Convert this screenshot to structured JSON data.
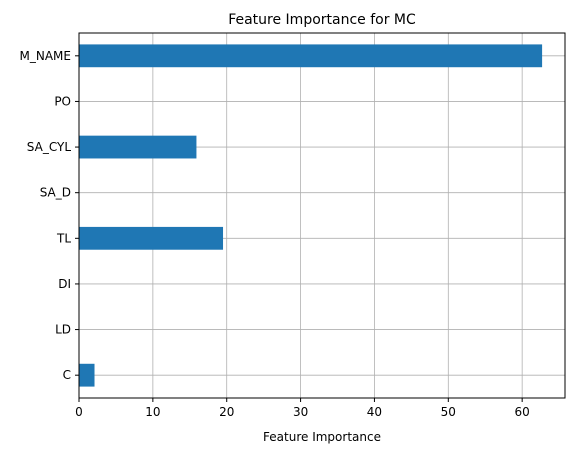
{
  "chart_data": {
    "type": "bar",
    "orientation": "horizontal",
    "title": "Feature Importance for MC",
    "xlabel": "Feature Importance",
    "ylabel": "",
    "categories": [
      "M_NAME",
      "PO",
      "SA_CYL",
      "SA_D",
      "TL",
      "DI",
      "LD",
      "C"
    ],
    "values": [
      62.7,
      0,
      15.9,
      0,
      19.5,
      0,
      0,
      2.1
    ],
    "xlim": [
      0,
      65.8
    ],
    "xticks": [
      0,
      10,
      20,
      30,
      40,
      50,
      60
    ],
    "grid": true,
    "bar_color": "#1f77b4"
  }
}
